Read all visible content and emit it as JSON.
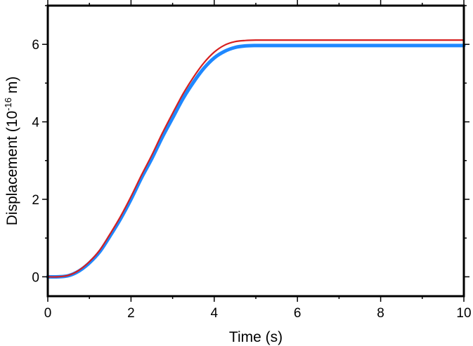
{
  "chart_data": {
    "type": "line",
    "xlabel": "Time (s)",
    "ylabel": {
      "prefix": "Displacement (10",
      "exponent": "-16",
      "suffix": " m)"
    },
    "xlim": [
      0,
      10
    ],
    "ylim": [
      -0.5,
      7
    ],
    "xticks_major": [
      0,
      2,
      4,
      6,
      8,
      10
    ],
    "yticks_major": [
      0,
      2,
      4,
      6
    ],
    "xticks_minor_step": 1,
    "yticks_minor_step": 1,
    "grid": false,
    "series": [
      {
        "color": "#1e88ff",
        "line_style": "thick",
        "x": [
          0,
          0.25,
          0.5,
          0.75,
          1.0,
          1.25,
          1.5,
          1.75,
          2.0,
          2.25,
          2.5,
          2.75,
          3.0,
          3.25,
          3.5,
          3.75,
          4.0,
          4.25,
          4.5,
          4.75,
          5.0,
          5.25,
          5.5,
          6.0,
          7.0,
          8.0,
          9.0,
          10.0
        ],
        "y": [
          0.0,
          0.0,
          0.03,
          0.15,
          0.36,
          0.65,
          1.06,
          1.5,
          2.0,
          2.55,
          3.05,
          3.6,
          4.1,
          4.6,
          5.02,
          5.38,
          5.65,
          5.82,
          5.92,
          5.96,
          5.97,
          5.97,
          5.97,
          5.97,
          5.97,
          5.97,
          5.97,
          5.97
        ]
      },
      {
        "color": "#d62020",
        "line_style": "thin",
        "x": [
          0,
          0.25,
          0.5,
          0.75,
          1.0,
          1.25,
          1.5,
          1.75,
          2.0,
          2.25,
          2.5,
          2.75,
          3.0,
          3.25,
          3.5,
          3.75,
          4.0,
          4.25,
          4.5,
          4.75,
          5.0,
          5.25,
          5.5,
          6.0,
          7.0,
          8.0,
          9.0,
          10.0
        ],
        "y": [
          0.0,
          0.0,
          0.04,
          0.17,
          0.39,
          0.69,
          1.11,
          1.56,
          2.07,
          2.62,
          3.14,
          3.7,
          4.22,
          4.72,
          5.15,
          5.52,
          5.8,
          5.98,
          6.07,
          6.1,
          6.11,
          6.11,
          6.11,
          6.11,
          6.11,
          6.11,
          6.11,
          6.11
        ]
      }
    ]
  }
}
